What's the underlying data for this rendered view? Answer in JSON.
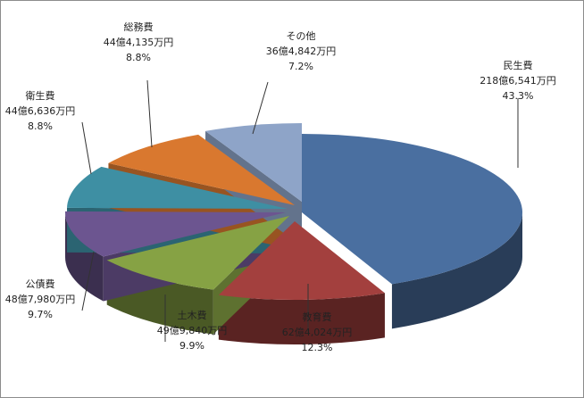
{
  "chart_data": {
    "type": "pie",
    "style": "3d-exploded",
    "title": "",
    "slices": [
      {
        "name": "民生費",
        "amount": "218億6,541万円",
        "percent": "43.3%",
        "value": 43.3,
        "color": "#4a6fa0"
      },
      {
        "name": "教育費",
        "amount": "62億4,024万円",
        "percent": "12.3%",
        "value": 12.3,
        "color": "#a3403e"
      },
      {
        "name": "土木費",
        "amount": "49億9,840万円",
        "percent": "9.9%",
        "value": 9.9,
        "color": "#86a244"
      },
      {
        "name": "公債費",
        "amount": "48億7,980万円",
        "percent": "9.7%",
        "value": 9.7,
        "color": "#6c5590"
      },
      {
        "name": "衛生費",
        "amount": "44億6,636万円",
        "percent": "8.8%",
        "value": 8.8,
        "color": "#3e8fa3"
      },
      {
        "name": "総務費",
        "amount": "44億4,135万円",
        "percent": "8.8%",
        "value": 8.8,
        "color": "#d9782f"
      },
      {
        "name": "その他",
        "amount": "36億4,842万円",
        "percent": "7.2%",
        "value": 7.2,
        "color": "#8ea4c8"
      }
    ]
  }
}
